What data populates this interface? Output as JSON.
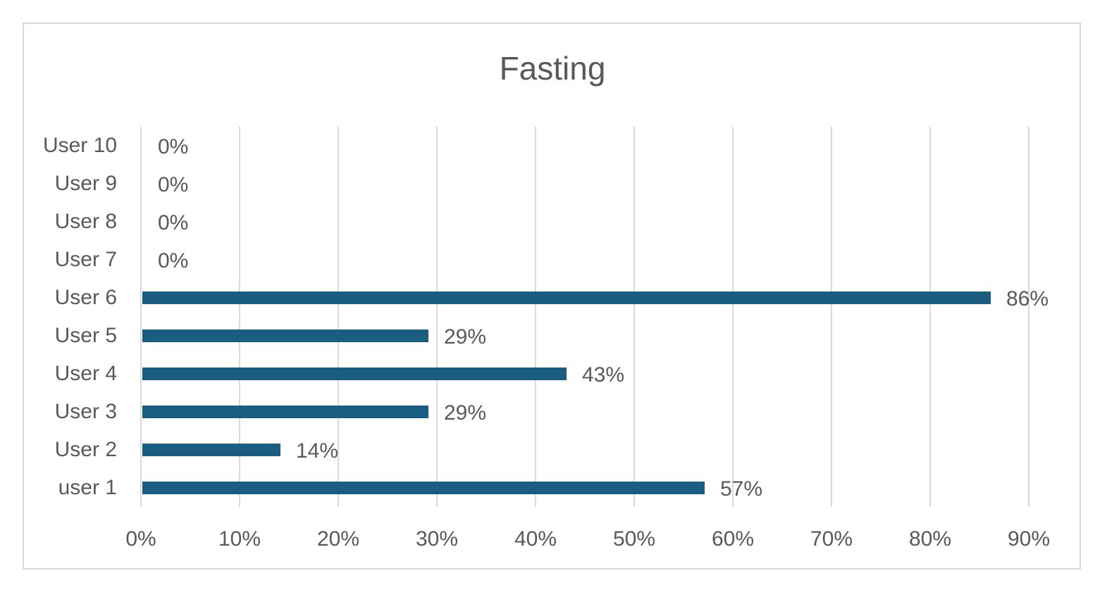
{
  "chart_data": {
    "type": "bar",
    "orientation": "horizontal",
    "title": "Fasting",
    "categories": [
      "user 1",
      "User 2",
      "User 3",
      "User 4",
      "User 5",
      "User 6",
      "User 7",
      "User 8",
      "User 9",
      "User 10"
    ],
    "values": [
      57,
      14,
      29,
      43,
      29,
      86,
      0,
      0,
      0,
      0
    ],
    "data_labels": [
      "57%",
      "14%",
      "29%",
      "43%",
      "29%",
      "86%",
      "0%",
      "0%",
      "0%",
      "0%"
    ],
    "xlim": [
      0,
      90
    ],
    "xticks": [
      0,
      10,
      20,
      30,
      40,
      50,
      60,
      70,
      80,
      90
    ],
    "xtick_labels": [
      "0%",
      "10%",
      "20%",
      "30%",
      "40%",
      "50%",
      "60%",
      "70%",
      "80%",
      "90%"
    ],
    "xlabel": "",
    "ylabel": "",
    "grid": "vertical",
    "legend": "none",
    "bar_color": "#1a5d80"
  }
}
